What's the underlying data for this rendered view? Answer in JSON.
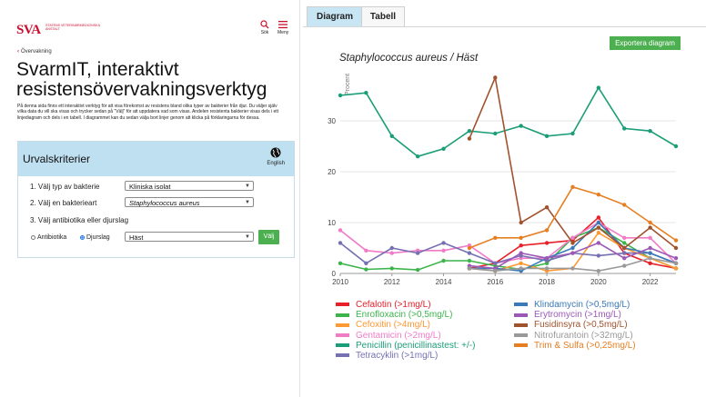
{
  "header": {
    "logo_mark": "SVA",
    "logo_text": "STATENS VETERINÄRMEDICINSKA ANSTALT",
    "search_label": "Sök",
    "menu_label": "Meny"
  },
  "breadcrumb": {
    "back_label": "Övervakning"
  },
  "page": {
    "title": "SvarmIT, interaktivt resistensövervakningsverktyg",
    "intro": "På denna sida finns ett interaktivt verktyg för att visa förekomst av resistens bland olika typer av bakterier från djur. Du väljer själv vilka data du vill ska visas och trycker sedan på \"Välj\" för att uppdatera vad som visas. Andelen resistenta bakterier visas dels i ett linjediagram och dels i en tabell. I diagrammet kan du sedan välja bort linjer genom att klicka på förklaringarna för dessa."
  },
  "criteria": {
    "title": "Urvalskriterier",
    "language_label": "English",
    "step1_label": "1. Välj typ av bakterie",
    "step1_value": "Kliniska isolat",
    "step2_label": "2. Välj en bakterieart",
    "step2_value": "Staphylococcus aureus",
    "step3_label": "3. Välj antibiotika eller djurslag",
    "radio_antibiotika": "Antibiotika",
    "radio_djurslag": "Djurslag",
    "animal_value": "Häst",
    "submit_label": "Välj"
  },
  "tabs": [
    {
      "label": "Diagram",
      "active": true
    },
    {
      "label": "Tabell",
      "active": false
    }
  ],
  "export_label": "Exportera diagram",
  "chart_data": {
    "type": "line",
    "title": "Staphylococcus aureus / Häst",
    "ylabel": "Procent",
    "xlabel": "",
    "x": [
      2010,
      2011,
      2012,
      2013,
      2014,
      2015,
      2016,
      2017,
      2018,
      2019,
      2020,
      2021,
      2022,
      2023
    ],
    "xlim": [
      2010,
      2023
    ],
    "ylim": [
      0,
      40
    ],
    "x_ticks": [
      2010,
      2012,
      2014,
      2016,
      2018,
      2020,
      2022
    ],
    "y_ticks": [
      0,
      10,
      20,
      30
    ],
    "grid": "horizontal",
    "legend_position": "bottom",
    "series": [
      {
        "name": "Cefalotin (>1mg/L)",
        "color": "#e8202a",
        "values": [
          null,
          null,
          null,
          null,
          null,
          1,
          2,
          5.5,
          6,
          6.5,
          11,
          4,
          2,
          1
        ]
      },
      {
        "name": "Enrofloxacin (>0,5mg/L)",
        "color": "#3cb44b",
        "values": [
          2,
          0.8,
          1,
          0.7,
          2.5,
          2.5,
          1.5,
          0.8,
          2,
          7,
          9,
          6,
          3,
          1
        ]
      },
      {
        "name": "Cefoxitin (>4mg/L)",
        "color": "#ff9933",
        "values": [
          null,
          null,
          null,
          null,
          null,
          1,
          0.5,
          2,
          0.5,
          1,
          8,
          5,
          3,
          1
        ]
      },
      {
        "name": "Gentamicin (>2mg/L)",
        "color": "#f27bc8",
        "values": [
          8.5,
          4.5,
          4,
          4.5,
          4.5,
          5.5,
          2,
          3,
          3,
          7,
          10,
          7,
          7,
          2
        ]
      },
      {
        "name": "Penicillin (penicillinastest: +/-)",
        "color": "#1b9e77",
        "values": [
          35,
          35.5,
          27,
          23,
          24.5,
          28,
          27.5,
          29,
          27,
          27.5,
          36.5,
          28.5,
          28,
          25
        ]
      },
      {
        "name": "Tetracyklin (>1mg/L)",
        "color": "#7570b3",
        "values": [
          6,
          2,
          5,
          4,
          6,
          4,
          2,
          3.5,
          2.5,
          4,
          3.5,
          4,
          4,
          2
        ]
      },
      {
        "name": "Klindamycin (>0,5mg/L)",
        "color": "#3b79b8",
        "values": [
          null,
          null,
          null,
          null,
          null,
          1,
          1,
          0.5,
          3,
          5,
          10,
          5,
          4,
          2
        ]
      },
      {
        "name": "Erytromycin (>1mg/L)",
        "color": "#9b59b6",
        "values": [
          null,
          null,
          null,
          null,
          null,
          1.5,
          1,
          4,
          3,
          4,
          6,
          3,
          5,
          3
        ]
      },
      {
        "name": "Fusidinsyra (>0,5mg/L)",
        "color": "#a0522d",
        "values": [
          null,
          null,
          null,
          null,
          null,
          26.5,
          38.5,
          10,
          13,
          6,
          9,
          5,
          9,
          5
        ]
      },
      {
        "name": "Nitrofurantoin (>32mg/L)",
        "color": "#999999",
        "values": [
          null,
          null,
          null,
          null,
          null,
          1,
          0.5,
          1,
          1,
          1,
          0.5,
          1.5,
          3,
          2
        ]
      },
      {
        "name": "Trim & Sulfa (>0,25mg/L)",
        "color": "#e67e22",
        "values": [
          null,
          null,
          null,
          null,
          null,
          5,
          7,
          7,
          8.5,
          17,
          15.5,
          13.5,
          10,
          6.5
        ]
      }
    ]
  }
}
